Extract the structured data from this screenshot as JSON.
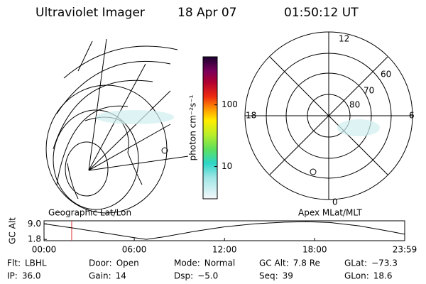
{
  "header": {
    "title": "Ultraviolet Imager",
    "date": "18 Apr 07",
    "time": "01:50:12 UT"
  },
  "panels": {
    "left_label": "Geographic Lat/Lon",
    "right_label": "Apex MLat/MLT"
  },
  "polar_labels": {
    "top": "12",
    "left": "18",
    "right": "6",
    "bottom": "0",
    "rings": [
      "60",
      "70",
      "80"
    ]
  },
  "colorbar": {
    "label": "photon cm⁻²s⁻¹",
    "log": true,
    "lim": [
      3,
      600
    ],
    "ticks": [
      10,
      100
    ]
  },
  "chart_data": {
    "type": "line",
    "ylabel": "GC Alt",
    "x": [
      0,
      2,
      4,
      6,
      6.8,
      8,
      10,
      12,
      14,
      16,
      17.5,
      19,
      21,
      23,
      23.983
    ],
    "series": [
      {
        "name": "GC Alt",
        "color": "#000000",
        "values": [
          9.0,
          7.0,
          4.8,
          2.6,
          1.8,
          3.0,
          5.5,
          7.6,
          9.0,
          9.8,
          10.0,
          9.6,
          8.0,
          5.5,
          4.2
        ]
      }
    ],
    "marker_x": 1.84,
    "marker_color": "#e03030",
    "xlim": [
      0,
      23.983
    ],
    "ylim": [
      1.2,
      10.4
    ],
    "xticks": [
      {
        "value": 0,
        "label": "00:00"
      },
      {
        "value": 6,
        "label": "06:00"
      },
      {
        "value": 12,
        "label": "12:00"
      },
      {
        "value": 18,
        "label": "18:00"
      },
      {
        "value": 23.983,
        "label": "23:59"
      }
    ],
    "yticks": [
      {
        "value": 9.0,
        "label": "9.0"
      },
      {
        "value": 1.8,
        "label": "1.8"
      }
    ]
  },
  "footer": {
    "rows": [
      [
        [
          "Flt:",
          "LBHL"
        ],
        [
          "Door:",
          "Open"
        ],
        [
          "Mode:",
          "Normal"
        ],
        [
          "GC Alt:",
          "7.8 Re"
        ],
        [
          "GLat:",
          "−73.3"
        ]
      ],
      [
        [
          "IP:",
          "36.0"
        ],
        [
          "Gain:",
          "14"
        ],
        [
          "Dsp:",
          "−5.0"
        ],
        [
          "Seq:",
          "39"
        ],
        [
          "GLon:",
          "18.6"
        ]
      ]
    ]
  }
}
